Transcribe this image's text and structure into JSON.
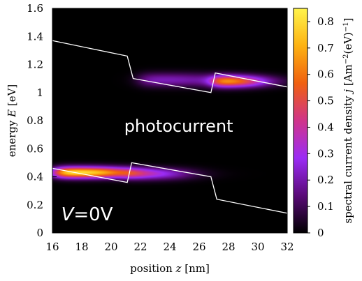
{
  "chart_data": {
    "type": "heatmap",
    "title": "",
    "xlabel_prefix": "position ",
    "xlabel_var": "z",
    "xlabel_suffix": " [nm]",
    "ylabel_prefix": "energy ",
    "ylabel_var": "E",
    "ylabel_suffix": " [eV]",
    "xlim": [
      16,
      32
    ],
    "ylim": [
      0,
      1.6
    ],
    "x_ticks": [
      "16",
      "18",
      "20",
      "22",
      "24",
      "26",
      "28",
      "30",
      "32"
    ],
    "y_ticks": [
      "0",
      "0.2",
      "0.4",
      "0.6",
      "0.8",
      "1",
      "1.2",
      "1.4",
      "1.6"
    ],
    "colorbar": {
      "label_prefix": "spectral current density ",
      "label_var": "j",
      "label_unit": " [Am",
      "label_exp1": "−2",
      "label_mid": "(eV)",
      "label_exp2": "−1",
      "label_end": "]",
      "range": [
        0,
        0.85
      ],
      "ticks": [
        "0",
        "0.1",
        "0.2",
        "0.3",
        "0.4",
        "0.5",
        "0.6",
        "0.7",
        "0.8"
      ],
      "colormap": [
        "#000000",
        "#5a0a78",
        "#9b2cf5",
        "#d0348a",
        "#f06010",
        "#fdb212",
        "#fff44c"
      ]
    },
    "annotations": {
      "photocurrent": "photocurrent",
      "voltage_var": "V",
      "voltage_value": "=0V"
    },
    "series": [
      {
        "kind": "band-edge",
        "color": "#ffffff",
        "points": [
          [
            16,
            1.37
          ],
          [
            21.1,
            1.26
          ],
          [
            21.5,
            1.1
          ],
          [
            26.8,
            1.0
          ],
          [
            27.1,
            1.14
          ],
          [
            32,
            1.04
          ]
        ]
      },
      {
        "kind": "band-edge",
        "color": "#ffffff",
        "points": [
          [
            16,
            0.46
          ],
          [
            21.1,
            0.36
          ],
          [
            21.4,
            0.5
          ],
          [
            26.8,
            0.4
          ],
          [
            27.2,
            0.24
          ],
          [
            32,
            0.14
          ]
        ]
      }
    ],
    "intensity_peaks": [
      {
        "x0": 16.2,
        "x1": 20.9,
        "e": 0.43,
        "sigma_e": 0.028,
        "peak": 0.84
      },
      {
        "x0": 20.9,
        "x1": 25.0,
        "e": 0.42,
        "sigma_e": 0.03,
        "peak": 0.3
      },
      {
        "x0": 27.0,
        "x1": 30.0,
        "e": 1.08,
        "sigma_e": 0.03,
        "peak": 0.7
      },
      {
        "x0": 22.0,
        "x1": 27.0,
        "e": 1.09,
        "sigma_e": 0.035,
        "peak": 0.22
      }
    ],
    "grid": false
  }
}
